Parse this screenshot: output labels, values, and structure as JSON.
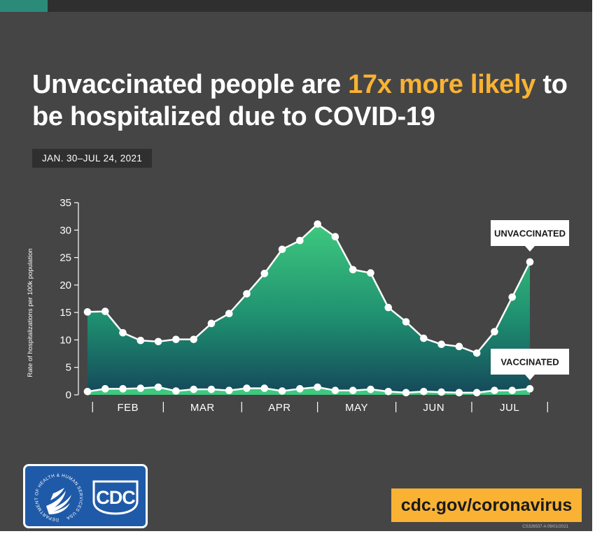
{
  "title": {
    "part1": "Unvaccinated people are ",
    "highlight": "17x more likely",
    "part2": " to be hospitalized due to COVID-19"
  },
  "date_range": "JAN. 30–JUL 24, 2021",
  "logo": {
    "cdc_text": "CDC",
    "seal_ring_text": "DEPARTMENT OF HEALTH & HUMAN SERVICES USA"
  },
  "url": "cdc.gov/coronavirus",
  "footer_code": "CS326537-A 09/01/2021",
  "colors": {
    "background": "#454545",
    "highlight": "#f9b233",
    "unvaccinated_area_top": "#3ec97e",
    "unvaccinated_area_bottom": "#14485a",
    "vaccinated_area": "#3ec97e",
    "cdc_blue": "#1f5aa8"
  },
  "chart_data": {
    "type": "area",
    "title": "",
    "xlabel": "",
    "ylabel": "Rate of hospitalizations per 100k population",
    "ylim": [
      0,
      35
    ],
    "yticks": [
      0,
      5,
      10,
      15,
      20,
      25,
      30,
      35
    ],
    "month_labels": [
      "FEB",
      "MAR",
      "APR",
      "MAY",
      "JUN",
      "JUL"
    ],
    "grid": false,
    "x": [
      "2021-01-30",
      "2021-02-06",
      "2021-02-13",
      "2021-02-20",
      "2021-02-27",
      "2021-03-06",
      "2021-03-13",
      "2021-03-20",
      "2021-03-27",
      "2021-04-03",
      "2021-04-10",
      "2021-04-17",
      "2021-04-24",
      "2021-05-01",
      "2021-05-08",
      "2021-05-15",
      "2021-05-22",
      "2021-05-29",
      "2021-06-05",
      "2021-06-12",
      "2021-06-19",
      "2021-06-26",
      "2021-07-03",
      "2021-07-10",
      "2021-07-17",
      "2021-07-24"
    ],
    "series": [
      {
        "name": "UNVACCINATED",
        "values": [
          15.1,
          15.2,
          11.3,
          9.9,
          9.7,
          10.1,
          10.1,
          13.0,
          14.8,
          18.4,
          22.1,
          26.5,
          28.1,
          31.1,
          28.8,
          22.8,
          22.2,
          15.9,
          13.3,
          10.3,
          9.2,
          8.8,
          7.6,
          11.5,
          17.8,
          24.2
        ]
      },
      {
        "name": "VACCINATED",
        "values": [
          0.6,
          1.1,
          1.1,
          1.2,
          1.4,
          0.7,
          1.0,
          1.0,
          0.8,
          1.2,
          1.2,
          0.7,
          1.1,
          1.4,
          0.8,
          0.8,
          1.0,
          0.6,
          0.4,
          0.6,
          0.5,
          0.4,
          0.4,
          0.8,
          0.8,
          1.1
        ]
      }
    ]
  }
}
